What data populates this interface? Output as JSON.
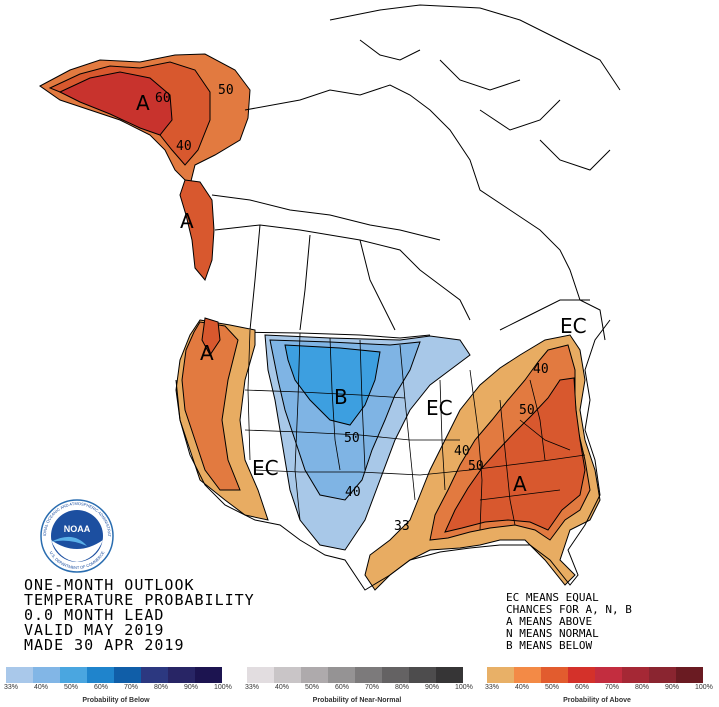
{
  "title_lines": [
    "ONE-MONTH OUTLOOK",
    "TEMPERATURE PROBABILITY",
    "0.0 MONTH LEAD",
    "VALID MAY 2019",
    "MADE 30 APR 2019"
  ],
  "legend_notes": [
    "EC MEANS EQUAL",
    "CHANCES FOR A, N, B",
    "A MEANS ABOVE",
    "N MEANS NORMAL",
    "B MEANS BELOW"
  ],
  "logo": {
    "center_text": "NOAA",
    "ring_text": "NATIONAL OCEANIC AND ATMOSPHERIC ADMINISTRATION",
    "ring_bottom": "U.S. DEPARTMENT OF COMMERCE"
  },
  "map_labels": {
    "alaska_a": "A",
    "alaska_60": "60",
    "alaska_50": "50",
    "alaska_40": "40",
    "panhandle_a": "A",
    "west_a": "A",
    "west_ec": "EC",
    "central_b": "B",
    "central_50": "50",
    "central_40": "40",
    "great_lakes_ec": "EC",
    "new_england_ec": "EC",
    "east_40_ne": "40",
    "east_50_ne": "50",
    "east_40_mid": "40",
    "east_50_mid": "50",
    "southeast_a": "A",
    "texas_33": "33"
  },
  "scales": {
    "below": {
      "caption": "Probability of Below",
      "ticks": [
        "33%",
        "40%",
        "50%",
        "60%",
        "70%",
        "80%",
        "90%",
        "100%"
      ],
      "colors": [
        "#a9c8ea",
        "#82b6e6",
        "#4aa6e0",
        "#1f84cc",
        "#105ea8",
        "#2c3880",
        "#282565",
        "#1c1450"
      ]
    },
    "normal": {
      "caption": "Probability of Near-Normal",
      "ticks": [
        "33%",
        "40%",
        "50%",
        "60%",
        "70%",
        "80%",
        "90%",
        "100%"
      ],
      "colors": [
        "#e2dde0",
        "#c9c5c7",
        "#aeaaac",
        "#959394",
        "#7c7a7b",
        "#646263",
        "#4d4c4d",
        "#363536"
      ]
    },
    "above": {
      "caption": "Probability of Above",
      "ticks": [
        "33%",
        "40%",
        "50%",
        "60%",
        "70%",
        "80%",
        "90%",
        "100%"
      ],
      "colors": [
        "#e8b067",
        "#f38a46",
        "#e25c2e",
        "#d4312a",
        "#c32d3f",
        "#a52835",
        "#8a2530",
        "#6a1b22"
      ]
    }
  },
  "colors": {
    "above33": "#e8ac62",
    "above40": "#e27a40",
    "above50": "#d8582e",
    "above60": "#c8332d",
    "below33": "#a8c8e8",
    "below40": "#7fb4e4",
    "below50": "#3d9fe0"
  }
}
